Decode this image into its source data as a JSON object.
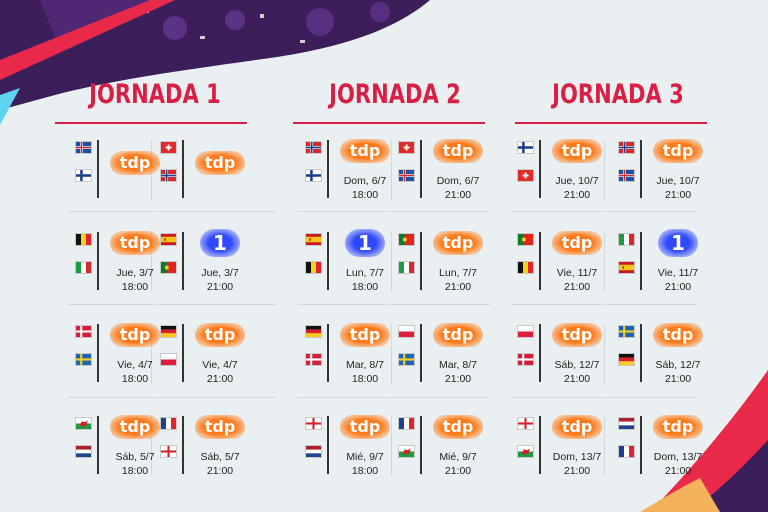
{
  "jornadas": [
    {
      "title": "JORNADA 1",
      "matches": [
        {
          "flags": [
            "iceland",
            "finland"
          ],
          "channel": "tdp",
          "date": "",
          "time": ""
        },
        {
          "flags": [
            "switzerland",
            "norway"
          ],
          "channel": "tdp",
          "date": "",
          "time": ""
        },
        {
          "flags": [
            "belgium",
            "italy"
          ],
          "channel": "tdp",
          "date": "Jue,  3/7",
          "time": "18:00"
        },
        {
          "flags": [
            "spain",
            "portugal"
          ],
          "channel": "1",
          "date": "Jue,  3/7",
          "time": "21:00"
        },
        {
          "flags": [
            "denmark",
            "sweden"
          ],
          "channel": "tdp",
          "date": "Vie, 4/7",
          "time": "18:00"
        },
        {
          "flags": [
            "germany",
            "poland"
          ],
          "channel": "tdp",
          "date": "Vie, 4/7",
          "time": "21:00"
        },
        {
          "flags": [
            "wales",
            "netherlands"
          ],
          "channel": "tdp",
          "date": "Sáb, 5/7",
          "time": "18:00"
        },
        {
          "flags": [
            "france",
            "england"
          ],
          "channel": "tdp",
          "date": "Sáb, 5/7",
          "time": "21:00"
        }
      ]
    },
    {
      "title": "JORNADA 2",
      "matches": [
        {
          "flags": [
            "norway",
            "finland"
          ],
          "channel": "tdp",
          "date": "Dom, 6/7",
          "time": "18:00"
        },
        {
          "flags": [
            "switzerland",
            "iceland"
          ],
          "channel": "tdp",
          "date": "Dom, 6/7",
          "time": "21:00"
        },
        {
          "flags": [
            "spain",
            "belgium"
          ],
          "channel": "1",
          "date": "Lun, 7/7",
          "time": "18:00"
        },
        {
          "flags": [
            "portugal",
            "italy"
          ],
          "channel": "tdp",
          "date": "Lun, 7/7",
          "time": "21:00"
        },
        {
          "flags": [
            "germany",
            "denmark"
          ],
          "channel": "tdp",
          "date": "Mar, 8/7",
          "time": "18:00"
        },
        {
          "flags": [
            "poland",
            "sweden"
          ],
          "channel": "tdp",
          "date": "Mar, 8/7",
          "time": "21:00"
        },
        {
          "flags": [
            "england",
            "netherlands"
          ],
          "channel": "tdp",
          "date": "Mié, 9/7",
          "time": "18:00"
        },
        {
          "flags": [
            "france",
            "wales"
          ],
          "channel": "tdp",
          "date": "Mié, 9/7",
          "time": "21:00"
        }
      ]
    },
    {
      "title": "JORNADA 3",
      "matches": [
        {
          "flags": [
            "finland",
            "switzerland"
          ],
          "channel": "tdp",
          "date": "Jue, 10/7",
          "time": "21:00"
        },
        {
          "flags": [
            "norway",
            "iceland"
          ],
          "channel": "tdp",
          "date": "Jue, 10/7",
          "time": "21:00"
        },
        {
          "flags": [
            "portugal",
            "belgium"
          ],
          "channel": "tdp",
          "date": "Vie, 11/7",
          "time": "21:00"
        },
        {
          "flags": [
            "italy",
            "spain"
          ],
          "channel": "1",
          "date": "Vie, 11/7",
          "time": "21:00"
        },
        {
          "flags": [
            "poland",
            "denmark"
          ],
          "channel": "tdp",
          "date": "Sáb, 12/7",
          "time": "21:00"
        },
        {
          "flags": [
            "sweden",
            "germany"
          ],
          "channel": "tdp",
          "date": "Sáb, 12/7",
          "time": "21:00"
        },
        {
          "flags": [
            "england",
            "wales"
          ],
          "channel": "tdp",
          "date": "Dom, 13/7",
          "time": "21:00"
        },
        {
          "flags": [
            "netherlands",
            "france"
          ],
          "channel": "tdp",
          "date": "Dom, 13/7",
          "time": "21:00"
        }
      ]
    }
  ],
  "colors": {
    "accent": "#d81f45",
    "tdp": "#ff7a1a",
    "la1": "#2f49ff",
    "purple": "#3c1f5a",
    "background": "#eaf0f2"
  }
}
